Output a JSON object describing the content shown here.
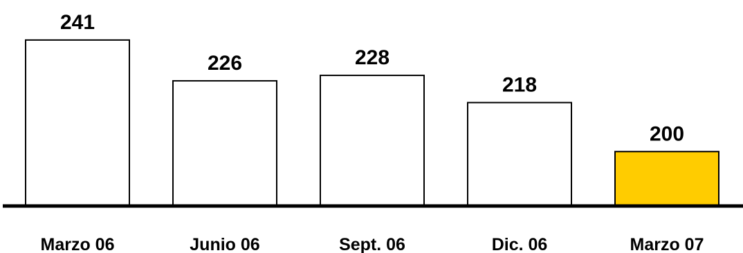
{
  "chart_data": {
    "type": "bar",
    "categories": [
      "Marzo 06",
      "Junio 06",
      "Sept. 06",
      "Dic. 06",
      "Marzo 07"
    ],
    "values": [
      241,
      226,
      228,
      218,
      200
    ],
    "data_labels": [
      "241",
      "226",
      "228",
      "218",
      "200"
    ],
    "bar_colors": [
      "#ffffff",
      "#ffffff",
      "#ffffff",
      "#ffffff",
      "#ffcc00"
    ],
    "outline_color": "#000000",
    "ylim": [
      180,
      243
    ],
    "grid": false,
    "legend": "none"
  }
}
